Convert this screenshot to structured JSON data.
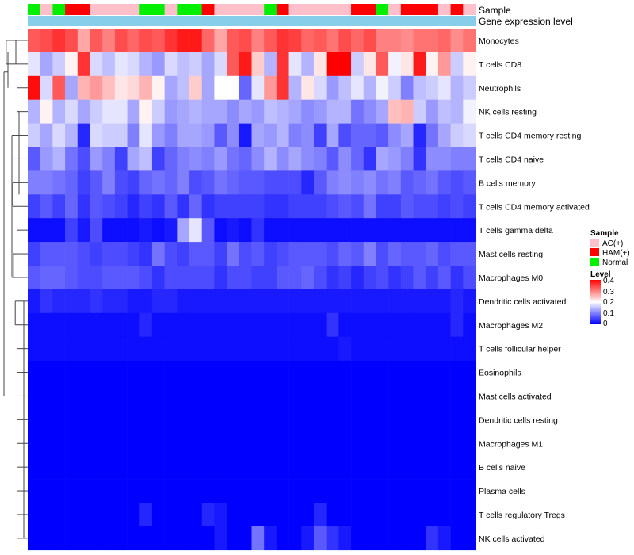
{
  "chart_data": {
    "type": "heatmap",
    "title": "",
    "annotation_tracks": [
      "Sample",
      "Gene expression level"
    ],
    "legend_sample": {
      "title": "Sample",
      "entries": [
        "AC(+)",
        "HAM(+)",
        "Normal"
      ]
    },
    "legend_level": {
      "title": "Level",
      "ticks": [
        "0.4",
        "0.3",
        "0.2",
        "0.1",
        "0"
      ]
    },
    "level_range": [
      0,
      0.4
    ],
    "colors": {
      "low": "#0000FF",
      "mid": "#FFFFFF",
      "high": "#FF0000",
      "sample_ac": "#FFC0CB",
      "sample_ham": "#FF0000",
      "sample_normal": "#00EE00",
      "expression_track": "#87CEEB"
    },
    "sample_groups": [
      "Normal",
      "AC(+)",
      "Normal",
      "HAM(+)",
      "HAM(+)",
      "AC(+)",
      "AC(+)",
      "AC(+)",
      "AC(+)",
      "Normal",
      "Normal",
      "AC(+)",
      "Normal",
      "Normal",
      "HAM(+)",
      "AC(+)",
      "AC(+)",
      "AC(+)",
      "AC(+)",
      "Normal",
      "HAM(+)",
      "AC(+)",
      "AC(+)",
      "AC(+)",
      "AC(+)",
      "AC(+)",
      "HAM(+)",
      "HAM(+)",
      "Normal",
      "AC(+)",
      "HAM(+)",
      "HAM(+)",
      "HAM(+)",
      "AC(+)",
      "HAM(+)",
      "AC(+)"
    ],
    "rows": [
      {
        "name": "Monocytes",
        "values": [
          0.33,
          0.34,
          0.36,
          0.34,
          0.27,
          0.33,
          0.3,
          0.34,
          0.32,
          0.34,
          0.33,
          0.36,
          0.38,
          0.38,
          0.32,
          0.27,
          0.33,
          0.34,
          0.3,
          0.33,
          0.36,
          0.35,
          0.32,
          0.33,
          0.31,
          0.34,
          0.32,
          0.34,
          0.3,
          0.3,
          0.29,
          0.31,
          0.31,
          0.32,
          0.29,
          0.31
        ]
      },
      {
        "name": "T cells CD8",
        "values": [
          0.18,
          0.13,
          0.16,
          0.21,
          0.36,
          0.17,
          0.15,
          0.18,
          0.17,
          0.14,
          0.12,
          0.17,
          0.15,
          0.16,
          0.13,
          0.17,
          0.33,
          0.38,
          0.24,
          0.14,
          0.36,
          0.18,
          0.14,
          0.22,
          0.4,
          0.4,
          0.16,
          0.22,
          0.33,
          0.19,
          0.22,
          0.38,
          0.21,
          0.28,
          0.16,
          0.21
        ]
      },
      {
        "name": "Neutrophils",
        "values": [
          0.39,
          0.17,
          0.33,
          0.13,
          0.26,
          0.28,
          0.25,
          0.22,
          0.23,
          0.26,
          0.21,
          0.13,
          0.15,
          0.24,
          0.13,
          0.2,
          0.2,
          0.08,
          0.18,
          0.28,
          0.36,
          0.14,
          0.22,
          0.17,
          0.12,
          0.15,
          0.18,
          0.14,
          0.19,
          0.16,
          0.1,
          0.15,
          0.16,
          0.18,
          0.14,
          0.16
        ]
      },
      {
        "name": "NK cells resting",
        "values": [
          0.14,
          0.21,
          0.14,
          0.17,
          0.13,
          0.16,
          0.18,
          0.18,
          0.13,
          0.21,
          0.16,
          0.12,
          0.13,
          0.14,
          0.13,
          0.13,
          0.11,
          0.13,
          0.12,
          0.15,
          0.14,
          0.13,
          0.11,
          0.12,
          0.14,
          0.14,
          0.09,
          0.11,
          0.13,
          0.25,
          0.26,
          0.16,
          0.12,
          0.15,
          0.14,
          0.19
        ]
      },
      {
        "name": "T cells CD4 memory resting",
        "values": [
          0.16,
          0.13,
          0.17,
          0.14,
          0.03,
          0.17,
          0.16,
          0.16,
          0.1,
          0.18,
          0.12,
          0.1,
          0.13,
          0.13,
          0.12,
          0.07,
          0.11,
          0.02,
          0.13,
          0.12,
          0.14,
          0.1,
          0.11,
          0.05,
          0.13,
          0.06,
          0.08,
          0.08,
          0.07,
          0.11,
          0.13,
          0.03,
          0.09,
          0.13,
          0.16,
          0.17
        ]
      },
      {
        "name": "T cells CD4 naive",
        "values": [
          0.07,
          0.12,
          0.14,
          0.09,
          0.06,
          0.12,
          0.1,
          0.05,
          0.13,
          0.15,
          0.05,
          0.08,
          0.1,
          0.11,
          0.1,
          0.12,
          0.09,
          0.08,
          0.11,
          0.14,
          0.11,
          0.13,
          0.11,
          0.1,
          0.07,
          0.11,
          0.08,
          0.04,
          0.13,
          0.12,
          0.1,
          0.04,
          0.11,
          0.11,
          0.1,
          0.1
        ]
      },
      {
        "name": "B cells memory",
        "values": [
          0.1,
          0.1,
          0.09,
          0.08,
          0.05,
          0.07,
          0.1,
          0.06,
          0.05,
          0.08,
          0.09,
          0.08,
          0.1,
          0.06,
          0.07,
          0.09,
          0.08,
          0.07,
          0.07,
          0.06,
          0.06,
          0.06,
          0.03,
          0.07,
          0.1,
          0.11,
          0.1,
          0.11,
          0.09,
          0.1,
          0.07,
          0.08,
          0.09,
          0.07,
          0.06,
          0.07
        ]
      },
      {
        "name": "T cells CD4 memory activated",
        "values": [
          0.05,
          0.07,
          0.05,
          0.08,
          0.04,
          0.07,
          0.06,
          0.05,
          0.03,
          0.05,
          0.04,
          0.07,
          0.04,
          0.08,
          0.04,
          0.05,
          0.05,
          0.05,
          0.05,
          0.04,
          0.04,
          0.05,
          0.05,
          0.05,
          0.06,
          0.07,
          0.06,
          0.09,
          0.05,
          0.05,
          0.07,
          0.06,
          0.06,
          0.05,
          0.06,
          0.05
        ]
      },
      {
        "name": "T cells gamma delta",
        "values": [
          0.01,
          0.01,
          0.01,
          0.05,
          0.02,
          0.06,
          0.01,
          0.01,
          0.01,
          0.02,
          0.01,
          0.02,
          0.13,
          0.18,
          0.07,
          0.01,
          0.02,
          0.01,
          0.04,
          0.01,
          0.01,
          0.01,
          0.01,
          0.01,
          0.01,
          0.01,
          0.01,
          0.01,
          0.01,
          0.01,
          0.01,
          0.01,
          0.01,
          0.01,
          0.01,
          0.01
        ]
      },
      {
        "name": "Mast cells resting",
        "values": [
          0.05,
          0.07,
          0.07,
          0.07,
          0.06,
          0.05,
          0.06,
          0.06,
          0.05,
          0.04,
          0.09,
          0.06,
          0.05,
          0.07,
          0.07,
          0.05,
          0.09,
          0.06,
          0.07,
          0.05,
          0.06,
          0.07,
          0.07,
          0.07,
          0.06,
          0.08,
          0.07,
          0.1,
          0.06,
          0.08,
          0.07,
          0.07,
          0.08,
          0.06,
          0.07,
          0.07
        ]
      },
      {
        "name": "Macrophages M0",
        "values": [
          0.07,
          0.08,
          0.08,
          0.07,
          0.06,
          0.06,
          0.07,
          0.07,
          0.07,
          0.06,
          0.04,
          0.06,
          0.06,
          0.06,
          0.06,
          0.04,
          0.06,
          0.06,
          0.05,
          0.05,
          0.07,
          0.07,
          0.08,
          0.06,
          0.04,
          0.05,
          0.03,
          0.05,
          0.06,
          0.04,
          0.05,
          0.07,
          0.05,
          0.07,
          0.04,
          0.06
        ]
      },
      {
        "name": "Dendritic cells activated",
        "values": [
          0.02,
          0.04,
          0.03,
          0.03,
          0.03,
          0.04,
          0.03,
          0.03,
          0.02,
          0.02,
          0.03,
          0.03,
          0.02,
          0.02,
          0.02,
          0.02,
          0.02,
          0.02,
          0.02,
          0.02,
          0.02,
          0.02,
          0.02,
          0.02,
          0.02,
          0.02,
          0.02,
          0.02,
          0.02,
          0.02,
          0.02,
          0.02,
          0.02,
          0.02,
          0.03,
          0.02
        ]
      },
      {
        "name": "Macrophages M2",
        "values": [
          0.01,
          0.01,
          0.01,
          0.01,
          0.01,
          0.01,
          0.01,
          0.01,
          0.01,
          0.03,
          0.01,
          0.01,
          0.01,
          0.01,
          0.01,
          0.01,
          0.01,
          0.01,
          0.01,
          0.01,
          0.01,
          0.01,
          0.01,
          0.01,
          0.04,
          0.01,
          0.01,
          0.01,
          0.01,
          0.01,
          0.01,
          0.01,
          0.01,
          0.01,
          0.03,
          0.01
        ]
      },
      {
        "name": "T cells follicular helper",
        "values": [
          0.01,
          0.01,
          0.01,
          0.01,
          0.01,
          0.01,
          0.01,
          0.01,
          0.01,
          0.01,
          0.01,
          0.01,
          0.01,
          0.01,
          0.01,
          0.01,
          0.01,
          0.01,
          0.01,
          0.01,
          0.01,
          0.01,
          0.01,
          0.01,
          0.01,
          0.02,
          0.01,
          0.01,
          0.01,
          0.01,
          0.01,
          0.01,
          0.01,
          0.01,
          0.01,
          0.01
        ]
      },
      {
        "name": "Eosinophils",
        "values": [
          0.0,
          0.0,
          0.0,
          0.0,
          0.0,
          0.0,
          0.0,
          0.0,
          0.0,
          0.0,
          0.0,
          0.0,
          0.0,
          0.0,
          0.0,
          0.0,
          0.0,
          0.0,
          0.0,
          0.0,
          0.0,
          0.0,
          0.0,
          0.0,
          0.0,
          0.0,
          0.0,
          0.0,
          0.0,
          0.0,
          0.0,
          0.0,
          0.0,
          0.0,
          0.0,
          0.0
        ]
      },
      {
        "name": "Mast cells activated",
        "values": [
          0.0,
          0.0,
          0.0,
          0.0,
          0.0,
          0.0,
          0.0,
          0.0,
          0.0,
          0.0,
          0.0,
          0.0,
          0.0,
          0.0,
          0.0,
          0.0,
          0.0,
          0.0,
          0.0,
          0.0,
          0.0,
          0.0,
          0.0,
          0.0,
          0.0,
          0.0,
          0.0,
          0.0,
          0.0,
          0.0,
          0.0,
          0.0,
          0.0,
          0.0,
          0.0,
          0.0
        ]
      },
      {
        "name": "Dendritic cells resting",
        "values": [
          0.0,
          0.0,
          0.0,
          0.0,
          0.0,
          0.0,
          0.0,
          0.0,
          0.0,
          0.0,
          0.0,
          0.0,
          0.0,
          0.0,
          0.0,
          0.0,
          0.0,
          0.0,
          0.0,
          0.0,
          0.0,
          0.0,
          0.0,
          0.0,
          0.0,
          0.0,
          0.0,
          0.0,
          0.0,
          0.0,
          0.0,
          0.0,
          0.0,
          0.0,
          0.0,
          0.0
        ]
      },
      {
        "name": "Macrophages M1",
        "values": [
          0.0,
          0.0,
          0.0,
          0.0,
          0.0,
          0.0,
          0.0,
          0.0,
          0.0,
          0.0,
          0.0,
          0.0,
          0.0,
          0.0,
          0.0,
          0.0,
          0.0,
          0.0,
          0.0,
          0.0,
          0.0,
          0.0,
          0.0,
          0.0,
          0.0,
          0.0,
          0.0,
          0.0,
          0.0,
          0.0,
          0.0,
          0.0,
          0.0,
          0.0,
          0.0,
          0.0
        ]
      },
      {
        "name": "B cells naive",
        "values": [
          0.0,
          0.0,
          0.0,
          0.0,
          0.0,
          0.0,
          0.0,
          0.0,
          0.0,
          0.0,
          0.0,
          0.0,
          0.0,
          0.0,
          0.0,
          0.0,
          0.0,
          0.0,
          0.0,
          0.0,
          0.0,
          0.0,
          0.0,
          0.0,
          0.0,
          0.0,
          0.0,
          0.0,
          0.0,
          0.0,
          0.0,
          0.0,
          0.0,
          0.0,
          0.0,
          0.0
        ]
      },
      {
        "name": "Plasma cells",
        "values": [
          0.0,
          0.0,
          0.0,
          0.0,
          0.0,
          0.0,
          0.0,
          0.0,
          0.0,
          0.0,
          0.0,
          0.0,
          0.0,
          0.0,
          0.0,
          0.0,
          0.0,
          0.0,
          0.0,
          0.0,
          0.0,
          0.0,
          0.0,
          0.0,
          0.0,
          0.0,
          0.0,
          0.0,
          0.0,
          0.0,
          0.0,
          0.0,
          0.0,
          0.0,
          0.0,
          0.0
        ]
      },
      {
        "name": "T cells regulatory  Tregs",
        "values": [
          0.0,
          0.0,
          0.0,
          0.0,
          0.0,
          0.0,
          0.0,
          0.0,
          0.0,
          0.03,
          0.0,
          0.0,
          0.0,
          0.0,
          0.03,
          0.02,
          0.0,
          0.0,
          0.0,
          0.0,
          0.0,
          0.0,
          0.0,
          0.03,
          0.0,
          0.0,
          0.0,
          0.0,
          0.0,
          0.0,
          0.0,
          0.0,
          0.0,
          0.0,
          0.0,
          0.0
        ]
      },
      {
        "name": "NK cells activated",
        "values": [
          0.0,
          0.0,
          0.0,
          0.0,
          0.0,
          0.0,
          0.0,
          0.0,
          0.0,
          0.0,
          0.0,
          0.0,
          0.0,
          0.0,
          0.0,
          0.02,
          0.0,
          0.0,
          0.09,
          0.02,
          0.0,
          0.0,
          0.02,
          0.07,
          0.04,
          0.02,
          0.0,
          0.0,
          0.0,
          0.0,
          0.0,
          0.0,
          0.04,
          0.02,
          0.0,
          0.0
        ]
      }
    ],
    "dendrogram": [
      {
        "a": "Monocytes",
        "b": "T cells CD8",
        "height": 0.22
      },
      {
        "a": "T cells CD4 memory resting",
        "b": "T cells CD4 naive",
        "height": 0.1
      },
      {
        "a": "B cells memory",
        "b": "T cells CD4 memory activated",
        "height": 0.08
      },
      {
        "a": "Mast cells resting",
        "b": "Macrophages M0",
        "height": 0.07
      },
      {
        "a": "Dendritic cells activated",
        "b": "Macrophages M2",
        "height": 0.03
      }
    ]
  }
}
